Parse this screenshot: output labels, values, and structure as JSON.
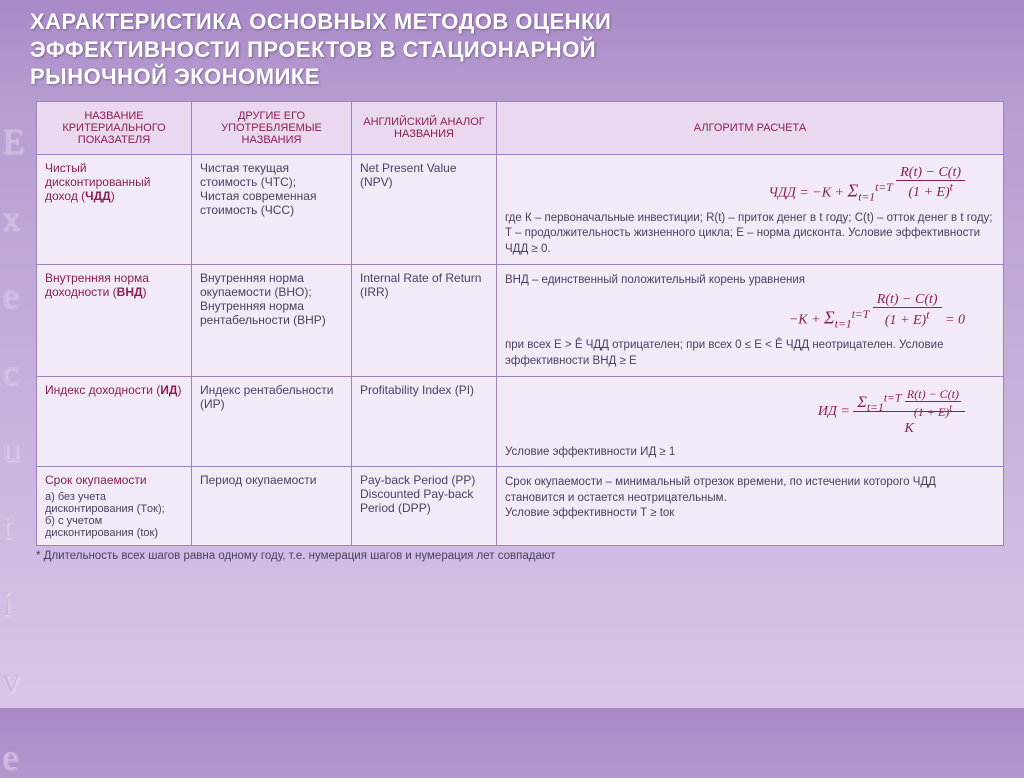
{
  "title_line1": "ХАРАКТЕРИСТИКА ОСНОВНЫХ МЕТОДОВ ОЦЕНКИ",
  "title_line2": "ЭФФЕКТИВНОСТИ ПРОЕКТОВ В СТАЦИОНАРНОЙ",
  "title_line3": "РЫНОЧНОЙ ЭКОНОМИКЕ",
  "sidebar": [
    "E",
    "x",
    "e",
    "c",
    "u",
    "t",
    "i",
    "v",
    "e"
  ],
  "headers": {
    "h1": "НАЗВАНИЕ КРИТЕРИАЛЬНОГО ПОКАЗАТЕЛЯ",
    "h2": "ДРУГИЕ ЕГО УПОТРЕБЛЯЕМЫЕ НАЗВАНИЯ",
    "h3": "АНГЛИЙСКИЙ АНАЛОГ НАЗВАНИЯ",
    "h4": "АЛГОРИТМ РАСЧЕТА"
  },
  "rows": [
    {
      "c1_pre": "Чистый дисконтированный доход (",
      "c1_bold": "ЧДД",
      "c1_post": ")",
      "c2": "Чистая текущая стоимость (ЧТС);\nЧистая современная стоимость (ЧСС)",
      "c3": "Net Present Value (NPV)",
      "formula_html": "ЧДД = −K + <span style='font-size:18px'>Σ</span><sub>t=1</sub><sup>t=T</sup> <span style='display:inline-block;text-align:center'><span style='border-bottom:1px solid #8a2050;padding:0 4px'>R(t) − C(t)</span><br><span>(1 + E)<sup>t</sup></span></span>",
      "desc": "где К – первоначальные инвестиции; R(t) – приток денег в t году; C(t) – отток денег в t году; T – продолжительность жизненного цикла; E – норма дисконта. Условие эффективности ЧДД ≥ 0."
    },
    {
      "c1_pre": "Внутренняя норма доходности (",
      "c1_bold": "ВНД",
      "c1_post": ")",
      "c2": "Внутренняя норма окупаемости (ВНО);\nВнутренняя норма рентабельности (ВНР)",
      "c3": "Internal Rate of Return (IRR)",
      "desc_pre": "ВНД – единственный положительный корень уравнения",
      "formula_html": "−K + <span style='font-size:18px'>Σ</span><sub>t=1</sub><sup>t=T</sup> <span style='display:inline-block;text-align:center'><span style='border-bottom:1px solid #8a2050;padding:0 4px'>R(t) − C(t)</span><br><span>(1 + E)<sup>t</sup></span></span> = 0",
      "desc": "при всех E > Ê ЧДД отрицателен; при всех 0 ≤ E < Ê ЧДД неотрицателен. Условие эффективности ВНД ≥ E"
    },
    {
      "c1_pre": "Индекс доходности (",
      "c1_bold": "ИД",
      "c1_post": ")",
      "c2": "Индекс рентабельности (ИР)",
      "c3": "Profitability Index (PI)",
      "formula_html": "ИД = <span style='display:inline-block;text-align:center;vertical-align:middle'><span style='border-bottom:1px solid #8a2050;padding:0 4px'><span style='font-size:16px'>Σ</span><sub>t=1</sub><sup>t=T</sup> <span style='display:inline-block;text-align:center;vertical-align:middle'><span style='border-bottom:1px solid #8a2050;padding:0 2px;font-size:12px'>R(t) − C(t)</span><br><span style='font-size:12px'>(1 + E)<sup>t</sup></span></span></span><br><span>K</span></span>",
      "desc": "Условие эффективности ИД ≥ 1"
    },
    {
      "c1_pre": "Срок окупаемости",
      "c1_bold": "",
      "c1_post": "",
      "c1_extra": "а) без учета дисконтирования (Tок);\nб) с учетом дисконтирования (tок)",
      "c2": "Период окупаемости",
      "c3": "Pay-back Period (PP)\nDiscounted Pay-back Period (DPP)",
      "desc": "Срок окупаемости – минимальный отрезок времени, по истечении которого ЧДД становится и остается неотрицательным.\nУсловие эффективности T ≥ tок"
    }
  ],
  "footnote": "* Длительность всех шагов равна одному году, т.е. нумерация шагов и нумерация лет совпадают",
  "colors": {
    "header_text": "#8a2050",
    "border": "#a080b8",
    "bg_cell": "#f2eaf7",
    "bg_header": "#e9d8f0",
    "title": "#ffffff"
  }
}
